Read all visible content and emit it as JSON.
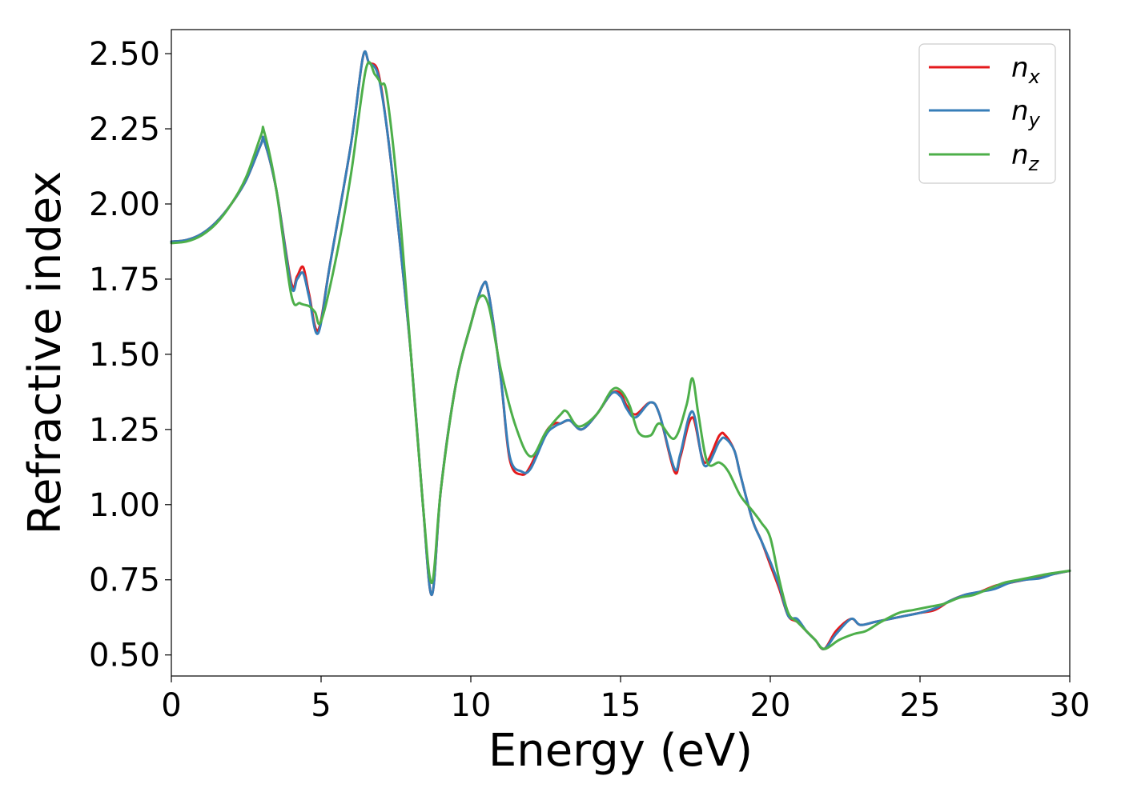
{
  "chart_data": {
    "type": "line",
    "title": "",
    "xlabel": "Energy (eV)",
    "ylabel": "Refractive index",
    "xlim": [
      0,
      30
    ],
    "ylim": [
      0.43,
      2.58
    ],
    "xticks": [
      0,
      5,
      10,
      15,
      20,
      25,
      30
    ],
    "xtick_labels": [
      "0",
      "5",
      "10",
      "15",
      "20",
      "25",
      "30"
    ],
    "yticks": [
      0.5,
      0.75,
      1.0,
      1.25,
      1.5,
      1.75,
      2.0,
      2.25,
      2.5
    ],
    "ytick_labels": [
      "0.50",
      "0.75",
      "1.00",
      "1.25",
      "1.50",
      "1.75",
      "2.00",
      "2.25",
      "2.50"
    ],
    "grid": false,
    "legend_position": "top-right",
    "series": [
      {
        "name": "nx",
        "label_base": "n",
        "label_sub": "x",
        "color": "#e41a1c",
        "x": [
          0,
          0.5,
          1.0,
          1.5,
          2.0,
          2.5,
          3.0,
          3.1,
          3.5,
          4.0,
          4.2,
          4.4,
          4.6,
          4.9,
          5.3,
          6.0,
          6.4,
          6.6,
          6.9,
          7.2,
          7.6,
          8.0,
          8.4,
          8.7,
          9.0,
          9.5,
          10.0,
          10.4,
          10.6,
          11.0,
          11.3,
          11.7,
          12.0,
          12.5,
          12.8,
          13.0,
          13.3,
          13.7,
          14.2,
          14.7,
          15.0,
          15.2,
          15.5,
          16.0,
          16.3,
          16.8,
          17.0,
          17.4,
          17.8,
          18.3,
          18.5,
          18.8,
          19.0,
          19.4,
          19.7,
          20.0,
          20.3,
          20.6,
          20.9,
          21.2,
          21.5,
          21.8,
          22.2,
          22.7,
          23.0,
          23.5,
          24.0,
          24.5,
          25.0,
          25.5,
          26.0,
          26.5,
          27.0,
          27.5,
          28.0,
          28.5,
          29.0,
          29.5,
          30.0
        ],
        "y": [
          1.875,
          1.88,
          1.9,
          1.94,
          2.0,
          2.08,
          2.2,
          2.21,
          2.05,
          1.74,
          1.76,
          1.79,
          1.7,
          1.58,
          1.8,
          2.2,
          2.49,
          2.47,
          2.44,
          2.25,
          1.9,
          1.5,
          1.0,
          0.7,
          1.05,
          1.4,
          1.6,
          1.73,
          1.7,
          1.42,
          1.15,
          1.1,
          1.13,
          1.24,
          1.27,
          1.27,
          1.28,
          1.25,
          1.3,
          1.37,
          1.37,
          1.33,
          1.3,
          1.34,
          1.3,
          1.11,
          1.16,
          1.29,
          1.14,
          1.23,
          1.23,
          1.18,
          1.1,
          0.95,
          0.88,
          0.8,
          0.72,
          0.63,
          0.61,
          0.58,
          0.55,
          0.52,
          0.58,
          0.62,
          0.6,
          0.61,
          0.62,
          0.63,
          0.64,
          0.65,
          0.68,
          0.7,
          0.71,
          0.73,
          0.74,
          0.75,
          0.76,
          0.77,
          0.78
        ]
      },
      {
        "name": "ny",
        "label_base": "n",
        "label_sub": "y",
        "color": "#377eb8",
        "x": [
          0,
          0.5,
          1.0,
          1.5,
          2.0,
          2.5,
          3.0,
          3.1,
          3.5,
          4.0,
          4.2,
          4.4,
          4.6,
          4.9,
          5.3,
          6.0,
          6.4,
          6.6,
          6.9,
          7.2,
          7.6,
          8.0,
          8.4,
          8.7,
          9.0,
          9.5,
          10.0,
          10.4,
          10.6,
          11.0,
          11.3,
          11.7,
          12.0,
          12.5,
          12.8,
          13.0,
          13.3,
          13.7,
          14.2,
          14.7,
          15.0,
          15.2,
          15.5,
          16.0,
          16.3,
          16.8,
          17.0,
          17.4,
          17.8,
          18.3,
          18.5,
          18.8,
          19.0,
          19.4,
          19.7,
          20.0,
          20.3,
          20.6,
          20.9,
          21.2,
          21.5,
          21.8,
          22.2,
          22.7,
          23.0,
          23.5,
          24.0,
          24.5,
          25.0,
          25.5,
          26.0,
          26.5,
          27.0,
          27.5,
          28.0,
          28.5,
          29.0,
          29.5,
          30.0
        ],
        "y": [
          1.875,
          1.88,
          1.9,
          1.94,
          2.0,
          2.08,
          2.2,
          2.21,
          2.05,
          1.73,
          1.75,
          1.77,
          1.69,
          1.57,
          1.8,
          2.2,
          2.49,
          2.47,
          2.43,
          2.25,
          1.9,
          1.5,
          1.0,
          0.7,
          1.05,
          1.4,
          1.6,
          1.73,
          1.7,
          1.42,
          1.16,
          1.11,
          1.12,
          1.23,
          1.26,
          1.27,
          1.28,
          1.25,
          1.3,
          1.37,
          1.36,
          1.32,
          1.29,
          1.34,
          1.3,
          1.12,
          1.17,
          1.31,
          1.13,
          1.21,
          1.22,
          1.18,
          1.1,
          0.95,
          0.88,
          0.81,
          0.73,
          0.63,
          0.62,
          0.58,
          0.55,
          0.52,
          0.57,
          0.62,
          0.6,
          0.61,
          0.62,
          0.63,
          0.64,
          0.655,
          0.68,
          0.7,
          0.71,
          0.72,
          0.74,
          0.75,
          0.755,
          0.77,
          0.78
        ]
      },
      {
        "name": "nz",
        "label_base": "n",
        "label_sub": "z",
        "color": "#4daf4a",
        "x": [
          0,
          0.5,
          1.0,
          1.5,
          2.0,
          2.5,
          3.0,
          3.1,
          3.5,
          4.0,
          4.3,
          4.6,
          4.8,
          5.0,
          5.5,
          6.0,
          6.5,
          6.8,
          7.0,
          7.2,
          7.6,
          8.0,
          8.4,
          8.7,
          9.0,
          9.5,
          10.0,
          10.3,
          10.6,
          11.0,
          11.5,
          12.0,
          12.5,
          13.0,
          13.2,
          13.6,
          14.2,
          14.7,
          15.0,
          15.3,
          15.6,
          16.0,
          16.3,
          16.8,
          17.2,
          17.4,
          17.6,
          17.9,
          18.3,
          18.6,
          19.0,
          19.4,
          19.7,
          20.0,
          20.3,
          20.6,
          20.9,
          21.2,
          21.5,
          21.8,
          22.3,
          22.8,
          23.2,
          23.7,
          24.3,
          24.8,
          25.3,
          25.8,
          26.3,
          26.8,
          27.3,
          27.8,
          28.3,
          28.8,
          29.3,
          30.0
        ],
        "y": [
          1.87,
          1.875,
          1.895,
          1.935,
          2.0,
          2.09,
          2.23,
          2.24,
          2.05,
          1.7,
          1.67,
          1.66,
          1.64,
          1.61,
          1.82,
          2.1,
          2.45,
          2.43,
          2.4,
          2.36,
          2.0,
          1.5,
          1.0,
          0.74,
          1.05,
          1.4,
          1.6,
          1.69,
          1.66,
          1.45,
          1.26,
          1.16,
          1.24,
          1.3,
          1.31,
          1.26,
          1.3,
          1.38,
          1.38,
          1.33,
          1.24,
          1.23,
          1.27,
          1.22,
          1.33,
          1.42,
          1.3,
          1.14,
          1.14,
          1.11,
          1.03,
          0.98,
          0.94,
          0.89,
          0.75,
          0.64,
          0.61,
          0.58,
          0.55,
          0.52,
          0.55,
          0.57,
          0.58,
          0.61,
          0.64,
          0.65,
          0.66,
          0.67,
          0.69,
          0.7,
          0.72,
          0.74,
          0.75,
          0.76,
          0.77,
          0.78
        ]
      }
    ]
  }
}
